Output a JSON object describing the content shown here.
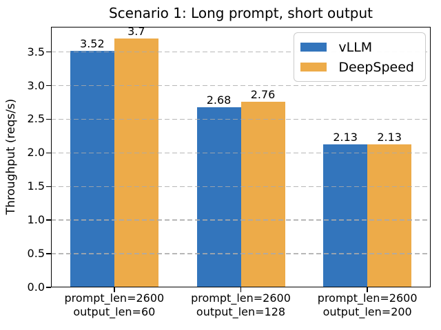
{
  "chart_data": {
    "type": "bar",
    "title": "Scenario 1: Long prompt, short output",
    "ylabel": "Throughput (reqs/s)",
    "xlabel": "",
    "categories": [
      {
        "line1": "prompt_len=2600",
        "line2": "output_len=60"
      },
      {
        "line1": "prompt_len=2600",
        "line2": "output_len=128"
      },
      {
        "line1": "prompt_len=2600",
        "line2": "output_len=200"
      }
    ],
    "series": [
      {
        "name": "vLLM",
        "color": "#3375bc",
        "values": [
          3.52,
          2.68,
          2.13
        ]
      },
      {
        "name": "DeepSpeed",
        "color": "#edab49",
        "values": [
          3.7,
          2.76,
          2.13
        ]
      }
    ],
    "yticks": [
      0.0,
      0.5,
      1.0,
      1.5,
      2.0,
      2.5,
      3.0,
      3.5
    ],
    "ylim": [
      0,
      3.875
    ],
    "bar_width": 0.35,
    "grid": {
      "axis": "y",
      "style": "dashed",
      "drawn_over_bars": true
    },
    "legend_position": "upper right"
  }
}
